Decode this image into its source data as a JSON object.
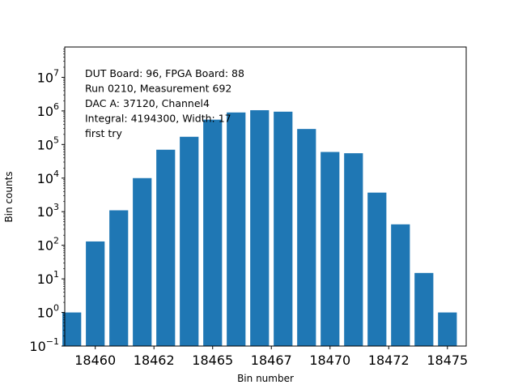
{
  "chart_data": {
    "type": "bar",
    "title": "",
    "xlabel": "Bin number",
    "ylabel": "Bin counts",
    "yscale": "log",
    "ylim": [
      0.1,
      80000000
    ],
    "xlim": [
      18458.7,
      18475.8
    ],
    "x_ticks": [
      18460,
      18462.5,
      18465,
      18467.5,
      18470,
      18472.5,
      18475
    ],
    "x_tick_labels": [
      "18460",
      "18462",
      "18465",
      "18467",
      "18470",
      "18472",
      "18475"
    ],
    "y_ticks": [
      {
        "value": 0.1,
        "base": "10",
        "exp": "−1"
      },
      {
        "value": 1,
        "base": "10",
        "exp": "0"
      },
      {
        "value": 10,
        "base": "10",
        "exp": "1"
      },
      {
        "value": 100,
        "base": "10",
        "exp": "2"
      },
      {
        "value": 1000,
        "base": "10",
        "exp": "3"
      },
      {
        "value": 10000,
        "base": "10",
        "exp": "4"
      },
      {
        "value": 100000,
        "base": "10",
        "exp": "5"
      },
      {
        "value": 1000000,
        "base": "10",
        "exp": "6"
      },
      {
        "value": 10000000,
        "base": "10",
        "exp": "7"
      }
    ],
    "bar_color": "#1f77b4",
    "bar_width": 0.8,
    "x": [
      18459,
      18460,
      18461,
      18462,
      18463,
      18464,
      18465,
      18466,
      18467,
      18468,
      18469,
      18470,
      18471,
      18472,
      18473,
      18474,
      18475
    ],
    "values": [
      1,
      130,
      1100,
      10000,
      70000,
      170000,
      550000,
      900000,
      1050000,
      950000,
      290000,
      60000,
      55000,
      3700,
      420,
      15,
      1
    ],
    "annotation_lines": [
      "DUT Board: 96, FPGA Board: 88",
      "Run 0210, Measurement 692",
      "DAC A: 37120, Channel4",
      "Integral: 4194300, Width: 17",
      "first try"
    ]
  }
}
